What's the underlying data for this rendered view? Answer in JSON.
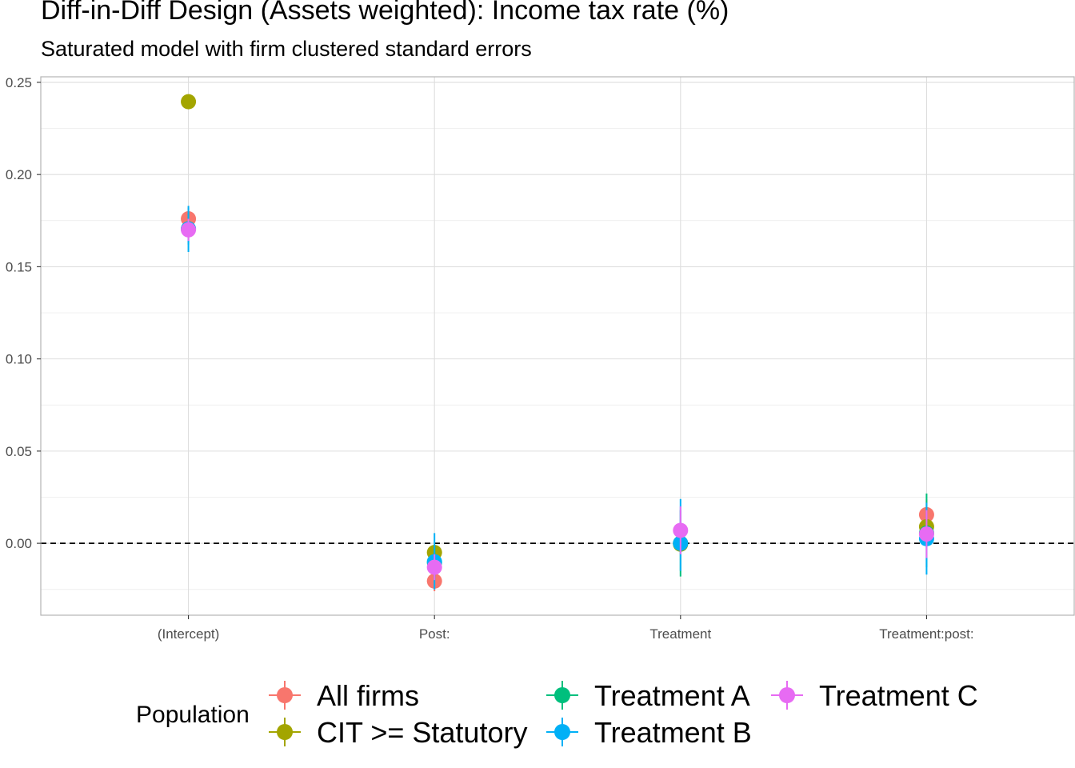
{
  "chart_data": {
    "type": "scatter",
    "title": "Diff-in-Diff Design (Assets weighted): Income tax rate  (%)",
    "subtitle": "Saturated model with firm clustered standard errors",
    "xlabel": "",
    "ylabel": "",
    "categories": [
      "(Intercept)",
      "Post:",
      "Treatment",
      "Treatment:post:"
    ],
    "ylim": [
      -0.039,
      0.253
    ],
    "yticks": [
      "0.00",
      "0.05",
      "0.10",
      "0.15",
      "0.20",
      "0.25"
    ],
    "ytick_values": [
      0,
      0.05,
      0.1,
      0.15,
      0.2,
      0.25
    ],
    "reference_line": 0,
    "grid": true,
    "legend": {
      "title": "Population",
      "position": "bottom"
    },
    "series": [
      {
        "name": "All firms",
        "color": "#F8766D",
        "values": [
          0.176,
          -0.0205,
          0.0,
          0.0155
        ],
        "lower": [
          0.17,
          -0.026,
          -0.004,
          0.007
        ],
        "upper": [
          0.182,
          -0.015,
          0.004,
          0.024
        ]
      },
      {
        "name": "CIT >= Statutory",
        "color": "#A3A500",
        "values": [
          0.2395,
          -0.005,
          -0.0005,
          0.009
        ],
        "lower": [
          0.237,
          -0.009,
          -0.003,
          0.005
        ],
        "upper": [
          0.242,
          -0.001,
          0.002,
          0.013
        ]
      },
      {
        "name": "Treatment A",
        "color": "#00BF7D",
        "values": [
          0.1705,
          -0.0105,
          0.0,
          0.0055
        ],
        "lower": [
          0.162,
          -0.02,
          -0.018,
          -0.013
        ],
        "upper": [
          0.179,
          -0.001,
          0.018,
          0.027
        ]
      },
      {
        "name": "Treatment B",
        "color": "#00B0F6",
        "values": [
          0.1705,
          -0.01,
          0.0,
          0.0025
        ],
        "lower": [
          0.158,
          -0.025,
          -0.015,
          -0.017
        ],
        "upper": [
          0.183,
          0.0055,
          0.024,
          0.022
        ]
      },
      {
        "name": "Treatment C",
        "color": "#E76BF3",
        "values": [
          0.17,
          -0.013,
          0.007,
          0.005
        ],
        "lower": [
          0.164,
          -0.02,
          -0.006,
          -0.008
        ],
        "upper": [
          0.176,
          -0.006,
          0.02,
          0.018
        ]
      }
    ]
  }
}
